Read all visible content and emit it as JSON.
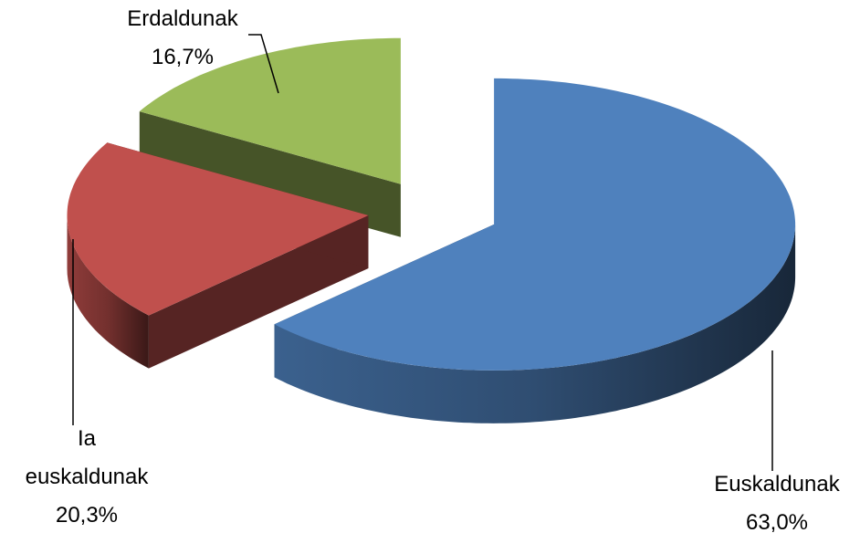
{
  "chart_data": {
    "type": "pie3d",
    "categories": [
      "Euskaldunak",
      "Ia euskaldunak",
      "Erdaldunak"
    ],
    "values": [
      63.0,
      20.3,
      16.7
    ],
    "value_labels": [
      "63,0%",
      "20,3%",
      "16,7%"
    ],
    "colors": [
      "#4f81bd",
      "#c0504d",
      "#9bbb59"
    ]
  }
}
